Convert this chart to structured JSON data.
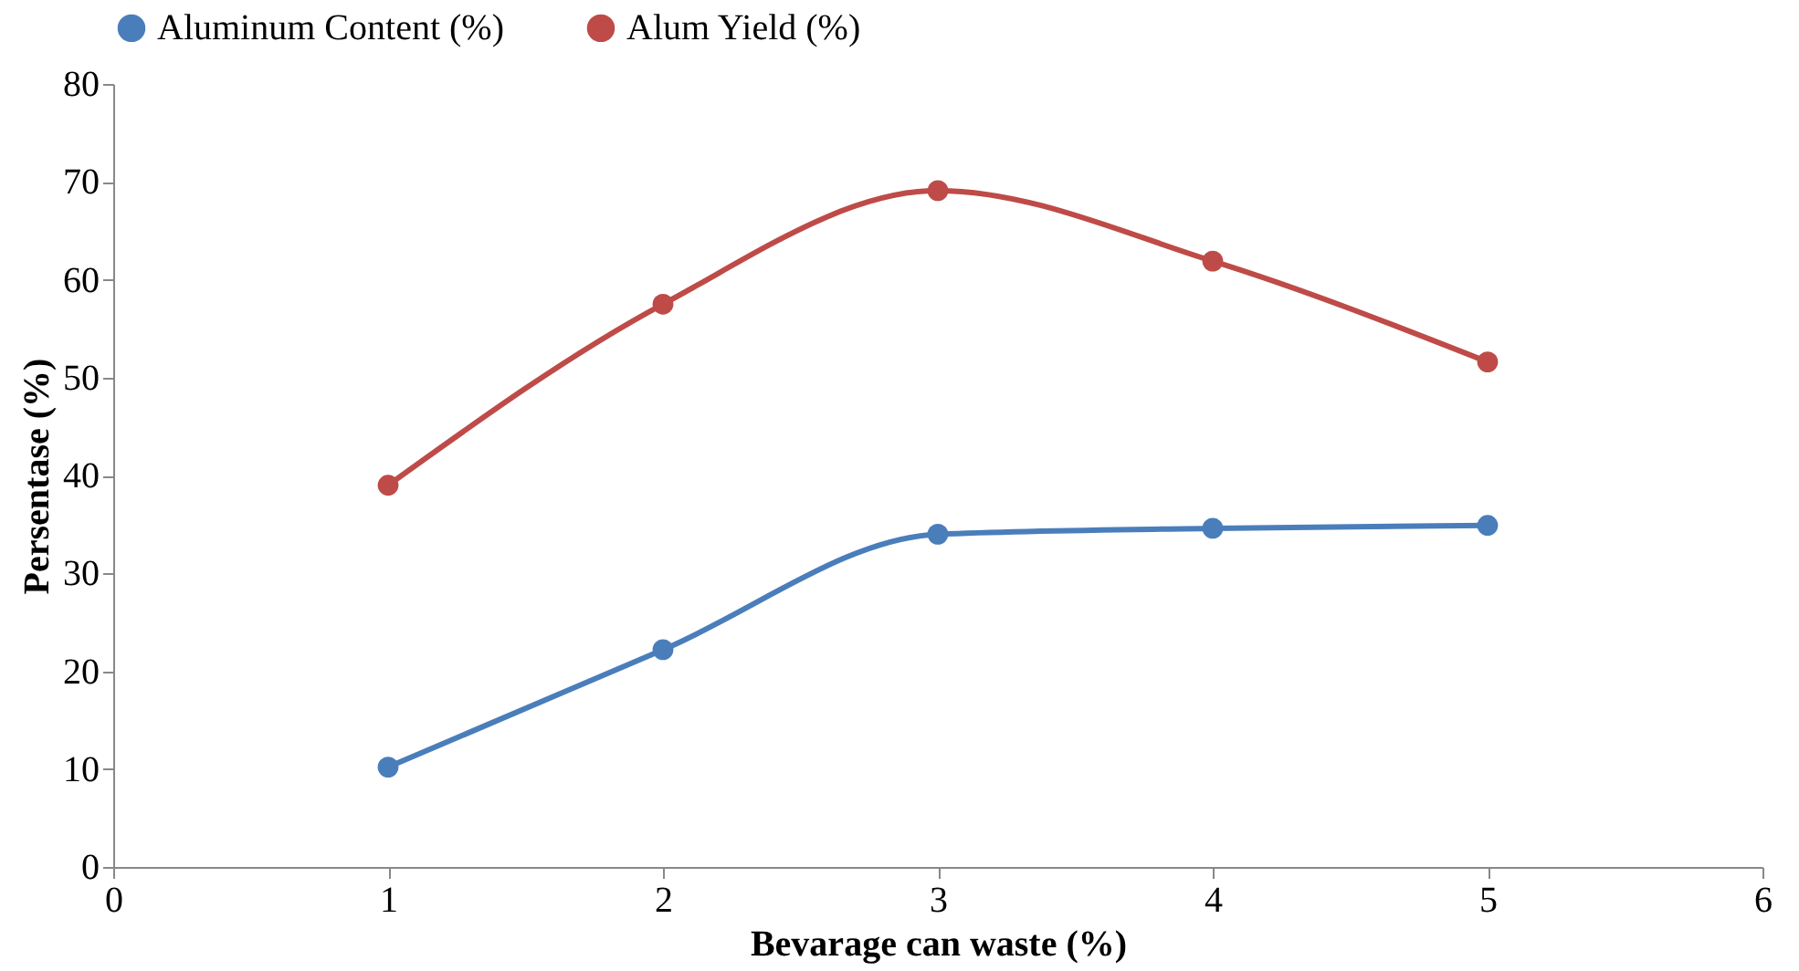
{
  "chart_data": {
    "type": "line",
    "xlabel": "Bevarage can waste (%)",
    "ylabel": "Persentase (%)",
    "x": [
      1,
      2,
      3,
      4,
      5
    ],
    "series": [
      {
        "name": "Aluminum Content (%)",
        "color": "#4a7ebb",
        "values": [
          10.2,
          22.2,
          34.0,
          34.6,
          34.9
        ]
      },
      {
        "name": "Alum Yield (%)",
        "color": "#be4b48",
        "values": [
          39.0,
          57.5,
          69.1,
          61.9,
          51.6
        ]
      }
    ],
    "xlim": [
      0,
      6
    ],
    "xticks": [
      0,
      1,
      2,
      3,
      4,
      5,
      6
    ],
    "ylim": [
      0,
      80
    ],
    "yticks": [
      0,
      10,
      20,
      30,
      40,
      50,
      60,
      70,
      80
    ],
    "grid": false,
    "legend": "top",
    "marker": "circle",
    "line_style": "solid"
  }
}
